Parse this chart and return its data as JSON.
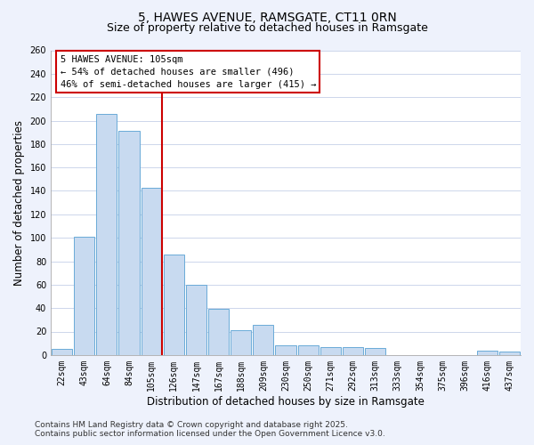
{
  "title_line1": "5, HAWES AVENUE, RAMSGATE, CT11 0RN",
  "title_line2": "Size of property relative to detached houses in Ramsgate",
  "bar_labels": [
    "22sqm",
    "43sqm",
    "64sqm",
    "84sqm",
    "105sqm",
    "126sqm",
    "147sqm",
    "167sqm",
    "188sqm",
    "209sqm",
    "230sqm",
    "250sqm",
    "271sqm",
    "292sqm",
    "313sqm",
    "333sqm",
    "354sqm",
    "375sqm",
    "396sqm",
    "416sqm",
    "437sqm"
  ],
  "bar_values": [
    5,
    101,
    206,
    191,
    143,
    86,
    60,
    39,
    21,
    26,
    8,
    8,
    7,
    7,
    6,
    0,
    0,
    0,
    0,
    4,
    3
  ],
  "bar_color": "#c8daf0",
  "bar_edgecolor": "#6aaad8",
  "vline_index": 4,
  "vline_color": "#cc0000",
  "annotation_title": "5 HAWES AVENUE: 105sqm",
  "annotation_line1": "← 54% of detached houses are smaller (496)",
  "annotation_line2": "46% of semi-detached houses are larger (415) →",
  "annotation_box_edgecolor": "#cc0000",
  "xlabel": "Distribution of detached houses by size in Ramsgate",
  "ylabel": "Number of detached properties",
  "ylim": [
    0,
    260
  ],
  "yticks": [
    0,
    20,
    40,
    60,
    80,
    100,
    120,
    140,
    160,
    180,
    200,
    220,
    240,
    260
  ],
  "footer_line1": "Contains HM Land Registry data © Crown copyright and database right 2025.",
  "footer_line2": "Contains public sector information licensed under the Open Government Licence v3.0.",
  "bg_color": "#eef2fc",
  "plot_bg_color": "#ffffff",
  "grid_color": "#c5d0e8",
  "title_fontsize": 10,
  "subtitle_fontsize": 9,
  "axis_label_fontsize": 8.5,
  "tick_fontsize": 7,
  "annotation_fontsize": 7.5,
  "footer_fontsize": 6.5
}
